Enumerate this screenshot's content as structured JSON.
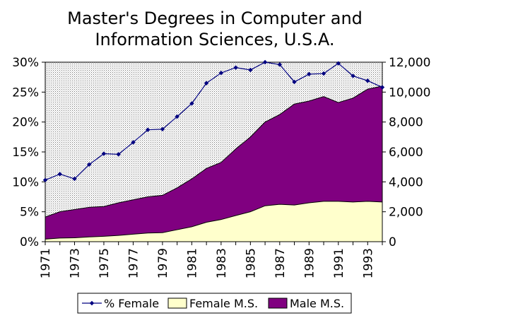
{
  "chart_data": {
    "type": "area",
    "title_lines": [
      "Master's Degrees in Computer and",
      "Information Sciences, U.S.A."
    ],
    "x": [
      1971,
      1972,
      1973,
      1974,
      1975,
      1976,
      1977,
      1978,
      1979,
      1980,
      1981,
      1982,
      1983,
      1984,
      1985,
      1986,
      1987,
      1988,
      1989,
      1990,
      1991,
      1992,
      1993,
      1994
    ],
    "x_tick_labels": [
      "1971",
      "1973",
      "1975",
      "1977",
      "1979",
      "1981",
      "1983",
      "1985",
      "1987",
      "1989",
      "1991",
      "1993"
    ],
    "left_axis": {
      "ylim": [
        0,
        30
      ],
      "tick_labels": [
        "0%",
        "5%",
        "10%",
        "15%",
        "20%",
        "25%",
        "30%"
      ]
    },
    "right_axis": {
      "ylim": [
        0,
        12000
      ],
      "tick_labels": [
        "0",
        "2,000",
        "4,000",
        "6,000",
        "8,000",
        "10,000",
        "12,000"
      ]
    },
    "series": [
      {
        "name": "% Female",
        "axis": "left",
        "style": "line",
        "color": "#000080",
        "values": [
          10.3,
          11.3,
          10.5,
          12.9,
          14.7,
          14.6,
          16.6,
          18.7,
          18.8,
          20.9,
          23.1,
          26.5,
          28.2,
          29.1,
          28.7,
          30.0,
          29.6,
          26.7,
          28.0,
          28.1,
          29.8,
          27.7,
          26.9,
          25.8
        ]
      },
      {
        "name": "Female M.S.",
        "axis": "right",
        "style": "area",
        "color": "#ffffcc",
        "values": [
          170,
          240,
          260,
          320,
          360,
          420,
          500,
          580,
          600,
          800,
          1000,
          1300,
          1480,
          1750,
          2000,
          2400,
          2500,
          2450,
          2600,
          2700,
          2700,
          2650,
          2700,
          2650
        ]
      },
      {
        "name": "Male M.S.",
        "axis": "right",
        "style": "area",
        "stacked_total": [
          1650,
          2000,
          2150,
          2300,
          2350,
          2600,
          2800,
          3000,
          3100,
          3600,
          4200,
          4900,
          5300,
          6200,
          7000,
          8000,
          8500,
          9200,
          9400,
          9700,
          9300,
          9600,
          10200,
          10400
        ],
        "color": "#800080"
      }
    ],
    "background": "#c0c0c0",
    "grid": false,
    "legend_position": "bottom"
  }
}
